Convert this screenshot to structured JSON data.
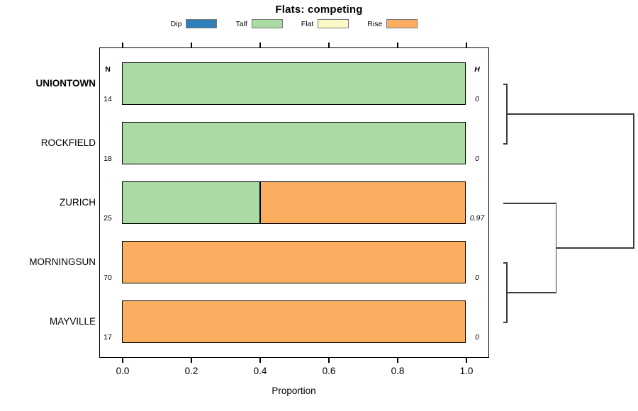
{
  "chart_data": {
    "type": "bar",
    "orientation": "horizontal-stacked",
    "title": "Flats: competing",
    "xlabel": "Proportion",
    "xlim": [
      0.0,
      1.0
    ],
    "xticks": [
      "0.0",
      "0.2",
      "0.4",
      "0.6",
      "0.8",
      "1.0"
    ],
    "grid": false,
    "legend_position": "top",
    "legend": [
      {
        "label": "Dip",
        "color": "#2E7EBB"
      },
      {
        "label": "Talf",
        "color": "#A9DBA2"
      },
      {
        "label": "Flat",
        "color": "#FAFAC8"
      },
      {
        "label": "Rise",
        "color": "#FBAD60"
      }
    ],
    "n_header": "N",
    "h_header": "H",
    "rows": [
      {
        "name": "UNIONTOWN",
        "bold": true,
        "n": 14,
        "h": "0",
        "segments": [
          {
            "category": "Talf",
            "value": 1.0
          }
        ]
      },
      {
        "name": "ROCKFIELD",
        "bold": false,
        "n": 18,
        "h": "0",
        "segments": [
          {
            "category": "Talf",
            "value": 1.0
          }
        ]
      },
      {
        "name": "ZURICH",
        "bold": false,
        "n": 25,
        "h": "0.97",
        "segments": [
          {
            "category": "Talf",
            "value": 0.4
          },
          {
            "category": "Rise",
            "value": 0.6
          }
        ]
      },
      {
        "name": "MORNINGSUN",
        "bold": false,
        "n": 70,
        "h": "0",
        "segments": [
          {
            "category": "Rise",
            "value": 1.0
          }
        ]
      },
      {
        "name": "MAYVILLE",
        "bold": false,
        "n": 17,
        "h": "0",
        "segments": [
          {
            "category": "Rise",
            "value": 1.0
          }
        ]
      }
    ],
    "dendrogram": {
      "side": "right",
      "leaves": [
        "UNIONTOWN",
        "ROCKFIELD",
        "ZURICH",
        "MORNINGSUN",
        "MAYVILLE"
      ],
      "merges": [
        {
          "id": "m0",
          "a": "UNIONTOWN",
          "b": "ROCKFIELD",
          "height": 0.0
        },
        {
          "id": "m1",
          "a": "MORNINGSUN",
          "b": "MAYVILLE",
          "height": 0.0
        },
        {
          "id": "m2",
          "a": "ZURICH",
          "b": "m1",
          "height": 0.39
        },
        {
          "id": "m3",
          "a": "m0",
          "b": "m2",
          "height": 1.0
        }
      ]
    }
  }
}
